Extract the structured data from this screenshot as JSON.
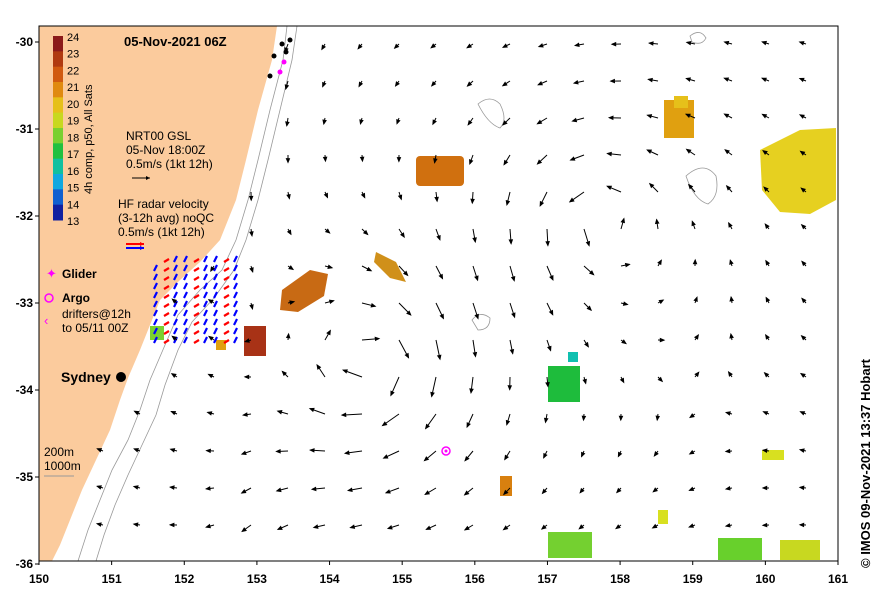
{
  "map": {
    "title": "05-Nov-2021 06Z",
    "credit": "© IMOS 09-Nov-2021 13:37 Hobart",
    "x_ticks": [
      "150",
      "151",
      "152",
      "153",
      "154",
      "155",
      "156",
      "157",
      "158",
      "159",
      "160",
      "161"
    ],
    "y_ticks": [
      "-30",
      "-31",
      "-32",
      "-33",
      "-34",
      "-35",
      "-36"
    ],
    "x_range": [
      150,
      161
    ],
    "y_range": [
      -36,
      -29.95
    ],
    "colors": {
      "land": "#fbcb9d",
      "ocean": "#ffffff",
      "glider": "#ff00ff",
      "argo": "#ff00ff",
      "radar": [
        "#ff0000",
        "#0000ff"
      ]
    }
  },
  "colorbar": {
    "label": "4h comp, p50, All Sats",
    "ticks": [
      "24",
      "23",
      "22",
      "21",
      "20",
      "19",
      "18",
      "17",
      "16",
      "15",
      "14",
      "13"
    ],
    "colors": [
      "#8b1a1a",
      "#b03a10",
      "#d05a10",
      "#e08a10",
      "#e6c01a",
      "#c8d820",
      "#7ad030",
      "#20c040",
      "#10c0a0",
      "#10a8e0",
      "#1060d0",
      "#1020a0"
    ]
  },
  "legend": {
    "gsl_title": "NRT00 GSL",
    "gsl_time": "05-Nov 18:00Z",
    "gsl_scale": "0.5m/s (1kt 12h)",
    "hf_title": "HF radar velocity",
    "hf_avg": "(3-12h avg) noQC",
    "hf_scale": "0.5m/s (1kt 12h)",
    "glider": "Glider",
    "argo": "Argo",
    "drifters_1": "drifters@12h",
    "drifters_2": "to 05/11 00Z",
    "city": "Sydney",
    "depth_1": "200m",
    "depth_2": "1000m"
  }
}
